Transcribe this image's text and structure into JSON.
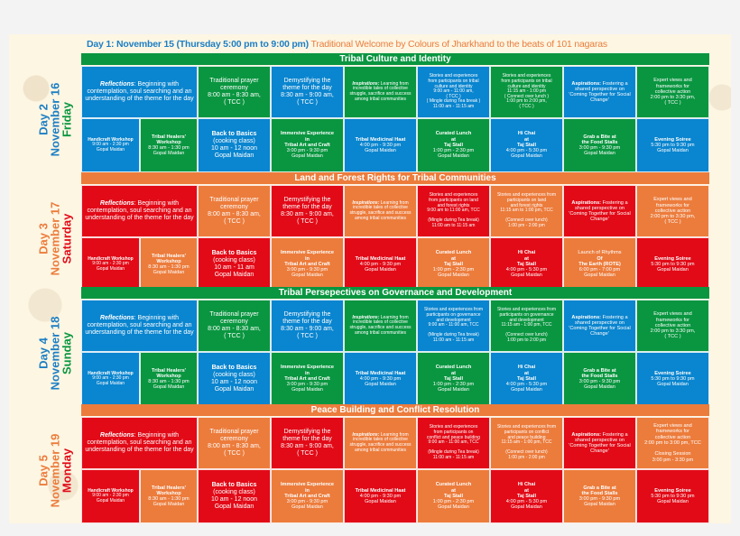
{
  "intro": {
    "lead": "Day 1: November 15 (Thursday 5:00 pm to 9:00 pm)",
    "rest": " Traditional Welcome by Colours of Jharkhand to the beats of 101 nagaras"
  },
  "colors": {
    "blue": "#0a85cf",
    "green": "#0a9640",
    "red": "#e20a17",
    "orange": "#ec7c3c",
    "cream": "#fdf6e3"
  },
  "days": [
    {
      "label_day": "Day 2",
      "label_date": "November 16",
      "label_weekday": "Friday",
      "date_color": "#1d7fc4",
      "weekday_color": "#0a9640",
      "theme": "Tribal Culture and Identity",
      "theme_color": "#0a9640",
      "row1": {
        "reflections_title": "Reflections",
        "reflections_text": ": Beginning with contemplation, soul searching and an understanding of the theme for the day",
        "prayer": [
          "Traditional prayer",
          "ceremony",
          "8:00 am - 8:30 am,",
          "( TCC )"
        ],
        "demystify": [
          "Demystifying the",
          "theme for the day",
          "8:30 am  -  9:00 am,",
          "( TCC )"
        ],
        "inspirations_title": "Inspirations:",
        "inspirations_text": " Learning from incredible tales of collective struggle,  sacrifice and success among tribal communities",
        "stories1": [
          "Stories and experiences",
          "from participants on tribal",
          "culture and identity",
          "9:00 am - 11:00 am,",
          "( TCC )",
          "( Mingle during Tea break )",
          "11:00 am - 11:15 am"
        ],
        "stories2": [
          "Stories and experiences",
          "from participants on tribal",
          "culture and identity",
          "11:15 am - 1:00 pm",
          "( Connect over lunch )",
          "1:00 pm to 2:00 pm,",
          "( TCC )"
        ],
        "aspirations_title": "Aspirations:",
        "aspirations_text": " Fostering a shared perspective on 'Coming Together for Social Change'",
        "expert": [
          "Expert views and",
          "frameworks for",
          "collective  action",
          "2:00 pm to 3:30 pm,",
          "( TCC )"
        ]
      },
      "row2": {
        "handicraft": [
          "Handicraft Workshop",
          "9:00 am - 2:30 pm",
          "Gopal Maidan"
        ],
        "healers": [
          "Tribal Healers'",
          "Workshop",
          "8:30 am - 1:30 pm",
          "Gopal Maidan"
        ],
        "basics": [
          "Back to Basics",
          "(cooking class)",
          "10 am - 12 noon",
          "Gopal Maidan"
        ],
        "immersive": [
          "Immersive Experience",
          "in",
          "Tribal Art and Craft",
          "3:00 pm - 9:30 pm",
          "Gopal Maidan"
        ],
        "haat": [
          "Tribal Medicinal Haat",
          "4:00 pm - 9:30 pm",
          "Gopal Maidan"
        ],
        "lunch": [
          "Curated Lunch",
          "at",
          "Taj Stall",
          "1:00 pm - 2:30 pm",
          "Gopal Maidan"
        ],
        "chai": [
          "Hi Chai",
          "at",
          "Taj Stall",
          "4:00 pm - 5:30 pm",
          "Gopal Maidan"
        ],
        "special": [
          "Grab a Bite at",
          "the Food Stalls",
          "3:00 pm - 9:30 pm",
          "Gopal Maidan"
        ],
        "soiree": [
          "Evening Soiree",
          "5:30 pm to 9:30 pm",
          "Gopal Maidan"
        ]
      }
    },
    {
      "label_day": "Day 3",
      "label_date": "November 17",
      "label_weekday": "Saturday",
      "date_color": "#ec7c3c",
      "weekday_color": "#e20a17",
      "theme": "Land and Forest Rights for Tribal Communities",
      "theme_color": "#ec7c3c",
      "row1": {
        "reflections_title": "Reflections",
        "reflections_text": ": Beginning with contemplation, soul searching and an understanding of the theme for the day",
        "prayer": [
          "Traditional prayer",
          "ceremony",
          "8:00 am - 8:30 am,",
          "( TCC )"
        ],
        "demystify": [
          "Demystifying the",
          "theme for the day",
          "8:30 am  -  9:00 am,",
          "( TCC )"
        ],
        "inspirations_title": "Inspirations:",
        "inspirations_text": " Learning from incredible tales of collective struggle,  sacrifice and success among tribal communities",
        "stories1": [
          "Stories and experiences",
          "from participants on land",
          "and forest rights",
          "9:00 am to 11:00 am, TCC",
          "",
          "(Mingle during Tea break)",
          "11:00 am to 11:15 am"
        ],
        "stories2": [
          "Stories and experiences from",
          "participants on land",
          "and forest rights",
          "11:15 am to 1:00 pm, TCC",
          "",
          "(Connect over lunch)",
          "1:00 pm - 2:00 pm"
        ],
        "aspirations_title": "Aspirations:",
        "aspirations_text": " Fostering a shared perspective on 'Coming Together for Social Change'",
        "expert": [
          "Expert views and",
          "frameworks for",
          "collective  action",
          "2:00 pm to 3:30 pm,",
          "( TCC )"
        ]
      },
      "row2": {
        "handicraft": [
          "Handicraft Workshop",
          "9:00 am - 2:30 pm",
          "Gopal Maidan"
        ],
        "healers": [
          "Tribal Healers'",
          "Workshop",
          "8:30 am - 1:30 pm",
          "Gopal Maidan"
        ],
        "basics": [
          "Back to Basics",
          "(cooking class)",
          "10 am - 11 am",
          "Gopal Maidan"
        ],
        "immersive": [
          "Immersive Experience",
          "in",
          "Tribal Art and Craft",
          "3:00 pm - 9:30 pm",
          "Gopal Maidan"
        ],
        "haat": [
          "Tribal Medicinal Haat",
          "4:00 pm - 9:30 pm",
          "Gopal Maidan"
        ],
        "lunch": [
          "Curated Lunch",
          "at",
          "Taj Stall",
          "1:00 pm - 2:30 pm",
          "Gopal Maidan"
        ],
        "chai": [
          "Hi Chai",
          "at",
          "Taj Stall",
          "4:00 pm - 5:30 pm",
          "Gopal Maidan"
        ],
        "special": [
          "Launch of Rhythms",
          "Of",
          "The Earth (ROTE)",
          "6:00 pm - 7:00 pm",
          "Gopal Maidan"
        ],
        "soiree": [
          "Evening Soiree",
          "5:30 pm to 9:30 pm",
          "Gopal Maidan"
        ]
      }
    },
    {
      "label_day": "Day 4",
      "label_date": "November 18",
      "label_weekday": "Sunday",
      "date_color": "#1d7fc4",
      "weekday_color": "#0a9640",
      "theme": "Tribal Persepectives on Governance and Development",
      "theme_color": "#0a9640",
      "row1": {
        "reflections_title": "Reflections",
        "reflections_text": ": Beginning with contemplation, soul searching and an understanding of the theme for the day",
        "prayer": [
          "Traditional prayer",
          "ceremony",
          "8:00 am - 8:30 am,",
          "( TCC )"
        ],
        "demystify": [
          "Demystifying the",
          "theme for the day",
          "8:30 am  -  9:00 am,",
          "( TCC )"
        ],
        "inspirations_title": "Inspirations:",
        "inspirations_text": " Learning from incredible tales of collective struggle,  sacrifice and success among tribal communities",
        "stories1": [
          "Stories and experiences from",
          "participants on governance",
          "and development",
          "9:00 am - 11:00 am, TCC",
          "",
          "(Mingle during Tea break)",
          "11:00 am - 11:15 am"
        ],
        "stories2": [
          "Stories and experiences from",
          "participants on governance",
          "and development",
          "11:15 am - 1:00 pm, TCC",
          "",
          "(Connect over lunch)",
          "1:00 pm to 2:00 pm"
        ],
        "aspirations_title": "Aspirations:",
        "aspirations_text": " Fostering a shared perspective on 'Coming Together for Social Change'",
        "expert": [
          "Expert views and",
          "frameworks for",
          "collective  action",
          "2:00 pm to 3:30 pm,",
          "( TCC )"
        ]
      },
      "row2": {
        "handicraft": [
          "Handicraft Workshop",
          "9:00 am - 2:30 pm",
          "Gopal Maidan"
        ],
        "healers": [
          "Tribal Healers'",
          "Workshop",
          "8:30 am - 1:30 pm",
          "Gopal Maidan"
        ],
        "basics": [
          "Back to Basics",
          "(cooking class)",
          "10 am - 12 noon",
          "Gopal Maidan"
        ],
        "immersive": [
          "Immersive Experience",
          "in",
          "Tribal Art and Craft",
          "3:00 pm - 9:30 pm",
          "Gopal Maidan"
        ],
        "haat": [
          "Tribal Medicinal Haat",
          "4:00 pm - 9:30 pm",
          "Gopal Maidan"
        ],
        "lunch": [
          "Curated Lunch",
          "at",
          "Taj Stall",
          "1:00 pm - 2:30 pm",
          "Gopal Maidan"
        ],
        "chai": [
          "Hi Chai",
          "at",
          "Taj Stall",
          "4:00 pm - 5:30 pm",
          "Gopal Maidan"
        ],
        "special": [
          "Grab a Bite at",
          "the Food Stalls",
          "3:00 pm - 9:30 pm",
          "Gopal Maidan"
        ],
        "soiree": [
          "Evening Soiree",
          "5:30 pm to 9:30 pm",
          "Gopal Maidan"
        ]
      }
    },
    {
      "label_day": "Day 5",
      "label_date": "November 19",
      "label_weekday": "Monday",
      "date_color": "#ec7c3c",
      "weekday_color": "#e20a17",
      "theme": "Peace Building and Conflict Resolution",
      "theme_color": "#ec7c3c",
      "row1": {
        "reflections_title": "Reflections",
        "reflections_text": ": Beginning with contemplation, soul searching and an understanding of the theme for the day",
        "prayer": [
          "Traditional prayer",
          "ceremony",
          "8:00 am - 8:30 am,",
          "( TCC )"
        ],
        "demystify": [
          "Demystifying the",
          "theme for the day",
          "8:30 am  -  9:00 am,",
          "( TCC )"
        ],
        "inspirations_title": "Inspirations:",
        "inspirations_text": " Learning from incredible tales of collective struggle,  sacrifice and success among tribal communities",
        "stories1": [
          "Stories and experiences",
          "from participants on",
          "conflict and peace building",
          "9:00 am - 11:00 am, TCC",
          "",
          "(Mingle during Tea break)",
          "11:00 am - 11:15 am"
        ],
        "stories2": [
          "Stories and experiences from",
          "participants on conflict",
          "and peace building",
          "11:15 am - 1:00 pm, TCC",
          "",
          "(Connect over lunch)",
          "1:00 pm - 2:00 pm"
        ],
        "aspirations_title": "Aspirations:",
        "aspirations_text": " Fostering a shared perspective on 'Coming Together for Social Change'",
        "expert": [
          "Expert views and",
          "frameworks for",
          "collective action",
          "2:00 pm to 3:00 pm, TCC",
          "",
          "Closing Session",
          "3:00 pm - 3:30 pm"
        ]
      },
      "row2": {
        "handicraft": [
          "Handicraft Workshop",
          "9:00 am - 2:30 pm",
          "Gopal Maidan"
        ],
        "healers": [
          "Tribal Healers'",
          "Workshop",
          "8:30 am - 1:30 pm",
          "Gopal Maidan"
        ],
        "basics": [
          "Back to Basics",
          "(cooking class)",
          "10 am - 12 noon",
          "Gopal Maidan"
        ],
        "immersive": [
          "Immersive Experience",
          "in",
          "Tribal Art and Craft",
          "3:00 pm - 9:30 pm",
          "Gopal Maidan"
        ],
        "haat": [
          "Tribal Medicinal Haat",
          "4:00 pm - 9:30 pm",
          "Gopal Maidan"
        ],
        "lunch": [
          "Curated Lunch",
          "at",
          "Taj Stall",
          "1:00 pm - 2:30 pm",
          "Gopal Maidan"
        ],
        "chai": [
          "Hi Chai",
          "at",
          "Taj Stall",
          "4:00 pm - 5:30 pm",
          "Gopal Maidan"
        ],
        "special": [
          "Grab a Bite at",
          "the Food Stalls",
          "3:00 pm - 9:30 pm",
          "Gopal Maidan"
        ],
        "soiree": [
          "Evening Soiree",
          "5:30 pm to 9:30 pm",
          "Gopal Maidan"
        ]
      }
    }
  ]
}
